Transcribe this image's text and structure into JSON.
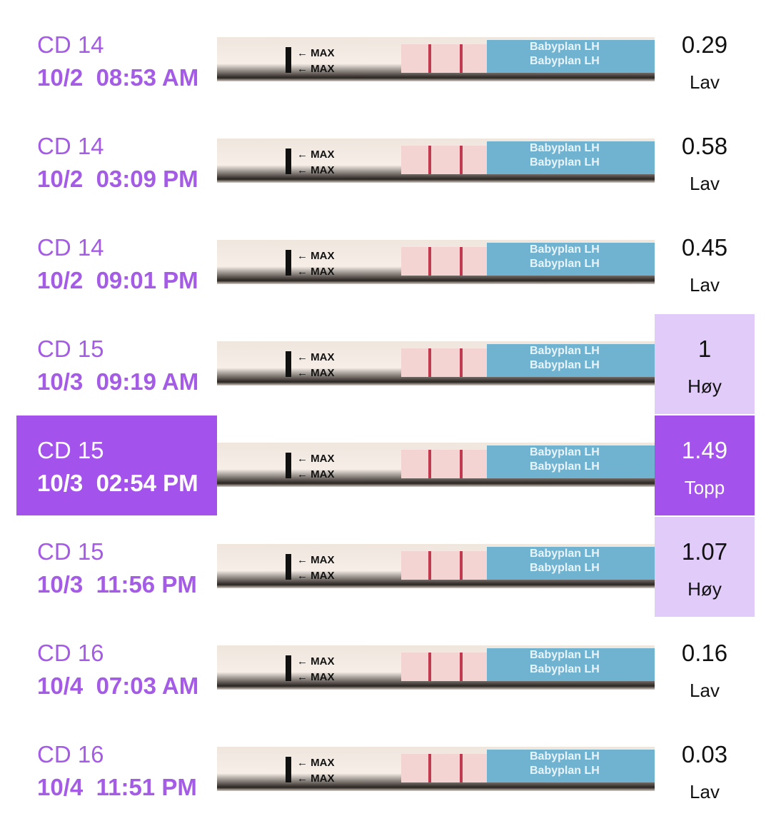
{
  "colors": {
    "accent": "#a452ec",
    "accent_text": "#a45ce6",
    "high_bg": "#e1cbf8"
  },
  "strip_labels": {
    "max": "← MAX",
    "brand": "Babyplan LH"
  },
  "entries": [
    {
      "cycle_day": "CD 14",
      "date": "10/2",
      "time": "08:53 AM",
      "value": "0.29",
      "level": "Lav",
      "level_type": "low",
      "selected": false
    },
    {
      "cycle_day": "CD 14",
      "date": "10/2",
      "time": "03:09 PM",
      "value": "0.58",
      "level": "Lav",
      "level_type": "low",
      "selected": false
    },
    {
      "cycle_day": "CD 14",
      "date": "10/2",
      "time": "09:01 PM",
      "value": "0.45",
      "level": "Lav",
      "level_type": "low",
      "selected": false
    },
    {
      "cycle_day": "CD 15",
      "date": "10/3",
      "time": "09:19 AM",
      "value": "1",
      "level": "Høy",
      "level_type": "high",
      "selected": false
    },
    {
      "cycle_day": "CD 15",
      "date": "10/3",
      "time": "02:54 PM",
      "value": "1.49",
      "level": "Topp",
      "level_type": "peak",
      "selected": true
    },
    {
      "cycle_day": "CD 15",
      "date": "10/3",
      "time": "11:56 PM",
      "value": "1.07",
      "level": "Høy",
      "level_type": "high",
      "selected": false
    },
    {
      "cycle_day": "CD 16",
      "date": "10/4",
      "time": "07:03 AM",
      "value": "0.16",
      "level": "Lav",
      "level_type": "low",
      "selected": false
    },
    {
      "cycle_day": "CD 16",
      "date": "10/4",
      "time": "11:51 PM",
      "value": "0.03",
      "level": "Lav",
      "level_type": "low",
      "selected": false
    }
  ]
}
